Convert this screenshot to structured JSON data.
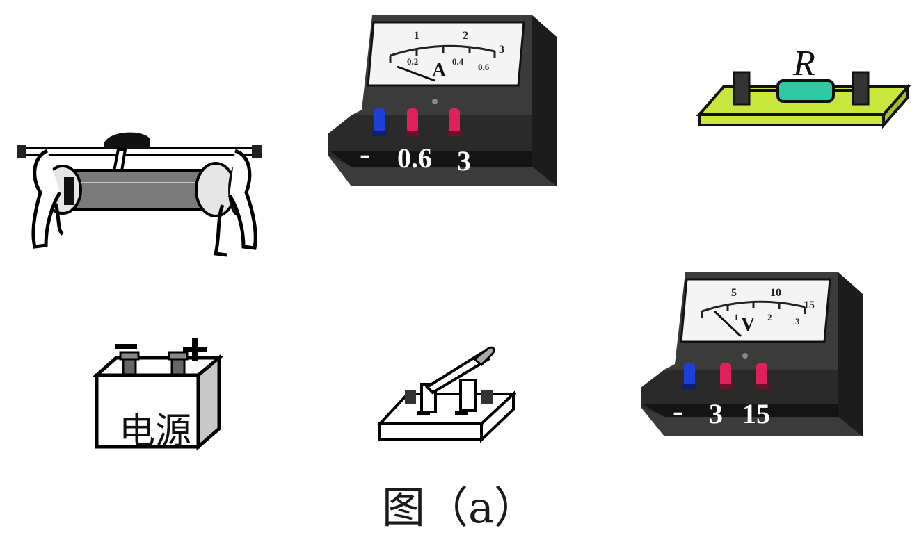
{
  "caption": "图（a）",
  "ammeter": {
    "unit_symbol": "A",
    "scale_top": [
      "1",
      "2",
      "3"
    ],
    "scale_bottom": [
      "0.2",
      "0.4",
      "0.6"
    ],
    "terminal_labels": [
      "-",
      "0.6",
      "3"
    ]
  },
  "voltmeter": {
    "unit_symbol": "V",
    "scale_top": [
      "5",
      "10",
      "15"
    ],
    "scale_bottom": [
      "1",
      "2",
      "3"
    ],
    "terminal_labels": [
      "-",
      "3",
      "15"
    ]
  },
  "resistor": {
    "label": "R",
    "color": "#c8e63c"
  },
  "battery": {
    "label": "电源",
    "neg_sign": "−",
    "pos_sign": "+"
  },
  "terminal_colors": {
    "negative": "#1e40d8",
    "positive": "#e0205a"
  }
}
